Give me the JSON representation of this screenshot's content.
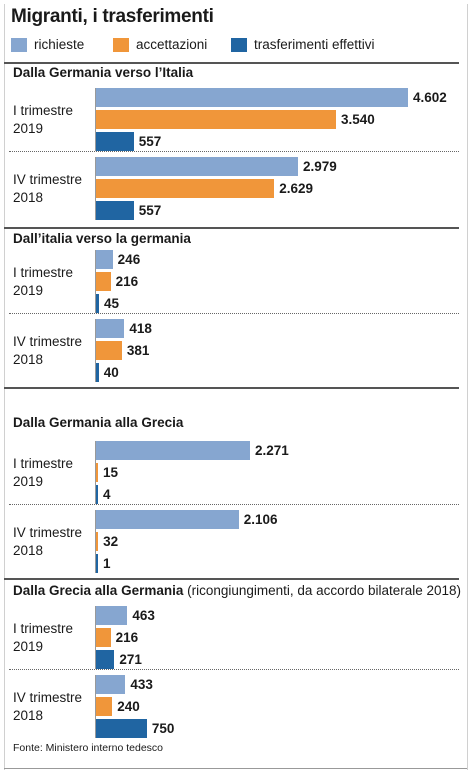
{
  "title": "Migranti, i trasferimenti",
  "legend": [
    {
      "label": "richieste",
      "color": "#86a6d0"
    },
    {
      "label": "accettazioni",
      "color": "#f0963a"
    },
    {
      "label": "trasferimenti effettivi",
      "color": "#2065a2"
    }
  ],
  "source": "Fonte: Ministero interno tedesco",
  "chart_data": [
    {
      "type": "bar",
      "orientation": "horizontal",
      "title": "Dalla Germania verso l’Italia",
      "subtitle": "",
      "categories": [
        "I trimestre 2019",
        "IV trimestre 2018"
      ],
      "series": [
        {
          "name": "richieste",
          "values": [
            4602,
            2979
          ],
          "labels": [
            "4.602",
            "2.979"
          ]
        },
        {
          "name": "accettazioni",
          "values": [
            3540,
            2629
          ],
          "labels": [
            "3.540",
            "2.629"
          ]
        },
        {
          "name": "trasferimenti effettivi",
          "values": [
            557,
            557
          ],
          "labels": [
            "557",
            "557"
          ]
        }
      ]
    },
    {
      "type": "bar",
      "orientation": "horizontal",
      "title": "Dall’italia verso la germania",
      "subtitle": "",
      "categories": [
        "I trimestre 2019",
        "IV trimestre 2018"
      ],
      "series": [
        {
          "name": "richieste",
          "values": [
            246,
            418
          ],
          "labels": [
            "246",
            "418"
          ]
        },
        {
          "name": "accettazioni",
          "values": [
            216,
            381
          ],
          "labels": [
            "216",
            "381"
          ]
        },
        {
          "name": "trasferimenti effettivi",
          "values": [
            45,
            40
          ],
          "labels": [
            "45",
            "40"
          ]
        }
      ]
    },
    {
      "type": "bar",
      "orientation": "horizontal",
      "title": "Dalla Germania alla Grecia",
      "subtitle": "",
      "categories": [
        "I trimestre 2019",
        "IV trimestre 2018"
      ],
      "series": [
        {
          "name": "richieste",
          "values": [
            2271,
            2106
          ],
          "labels": [
            "2.271",
            "2.106"
          ]
        },
        {
          "name": "accettazioni",
          "values": [
            15,
            32
          ],
          "labels": [
            "15",
            "32"
          ]
        },
        {
          "name": "trasferimenti effettivi",
          "values": [
            4,
            1
          ],
          "labels": [
            "4",
            "1"
          ]
        }
      ]
    },
    {
      "type": "bar",
      "orientation": "horizontal",
      "title": "Dalla Grecia alla Germania",
      "subtitle": "(ricongiungimenti, da accordo bilaterale 2018)",
      "categories": [
        "I trimestre 2019",
        "IV trimestre 2018"
      ],
      "series": [
        {
          "name": "richieste",
          "values": [
            463,
            433
          ],
          "labels": [
            "463",
            "433"
          ]
        },
        {
          "name": "accettazioni",
          "values": [
            216,
            240
          ],
          "labels": [
            "216",
            "240"
          ]
        },
        {
          "name": "trasferimenti effettivi",
          "values": [
            271,
            750
          ],
          "labels": [
            "271",
            "750"
          ]
        }
      ]
    }
  ]
}
